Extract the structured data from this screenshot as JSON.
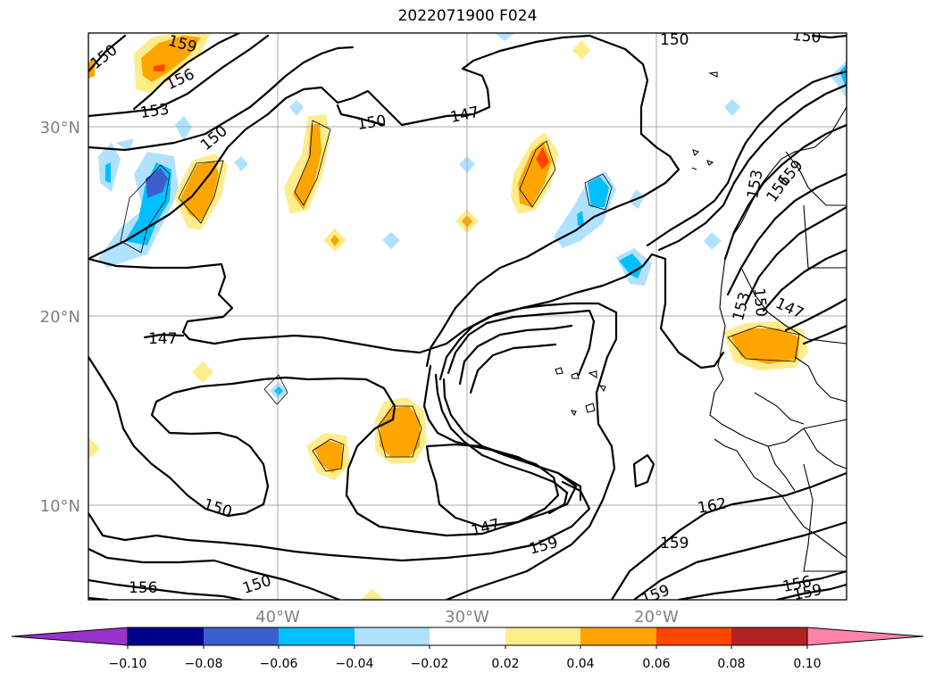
{
  "title": "2022071900 F024",
  "latitude_labels": [
    "30°N",
    "20°N",
    "10°N"
  ],
  "longitude_labels": [
    "40°W",
    "30°W",
    "20°W"
  ],
  "contour_labels": [
    "150",
    "159",
    "156",
    "153",
    "150",
    "150",
    "147",
    "150",
    "150",
    "153",
    "159",
    "156",
    "147",
    "150",
    "147",
    "153",
    "150",
    "147",
    "159",
    "150",
    "156",
    "159",
    "162",
    "159",
    "156",
    "159",
    "156",
    "159"
  ],
  "colorbar": {
    "tick_labels": [
      "−0.10",
      "−0.08",
      "−0.06",
      "−0.04",
      "−0.02",
      "0.02",
      "0.04",
      "0.06",
      "0.08",
      "0.10"
    ],
    "colors": [
      "#9932cc",
      "#00008b",
      "#3a5fcd",
      "#00bfff",
      "#b0e2ff",
      "#ffffff",
      "#ffec8b",
      "#ffa500",
      "#ff4500",
      "#b22222",
      "#ff82ab"
    ]
  },
  "shading_colors": {
    "light_yellow": "#ffec8b",
    "orange": "#ffa500",
    "red_orange": "#ff4500",
    "light_blue": "#b0e2ff",
    "deep_sky_blue": "#00bfff",
    "royal_blue": "#3a5fcd"
  }
}
